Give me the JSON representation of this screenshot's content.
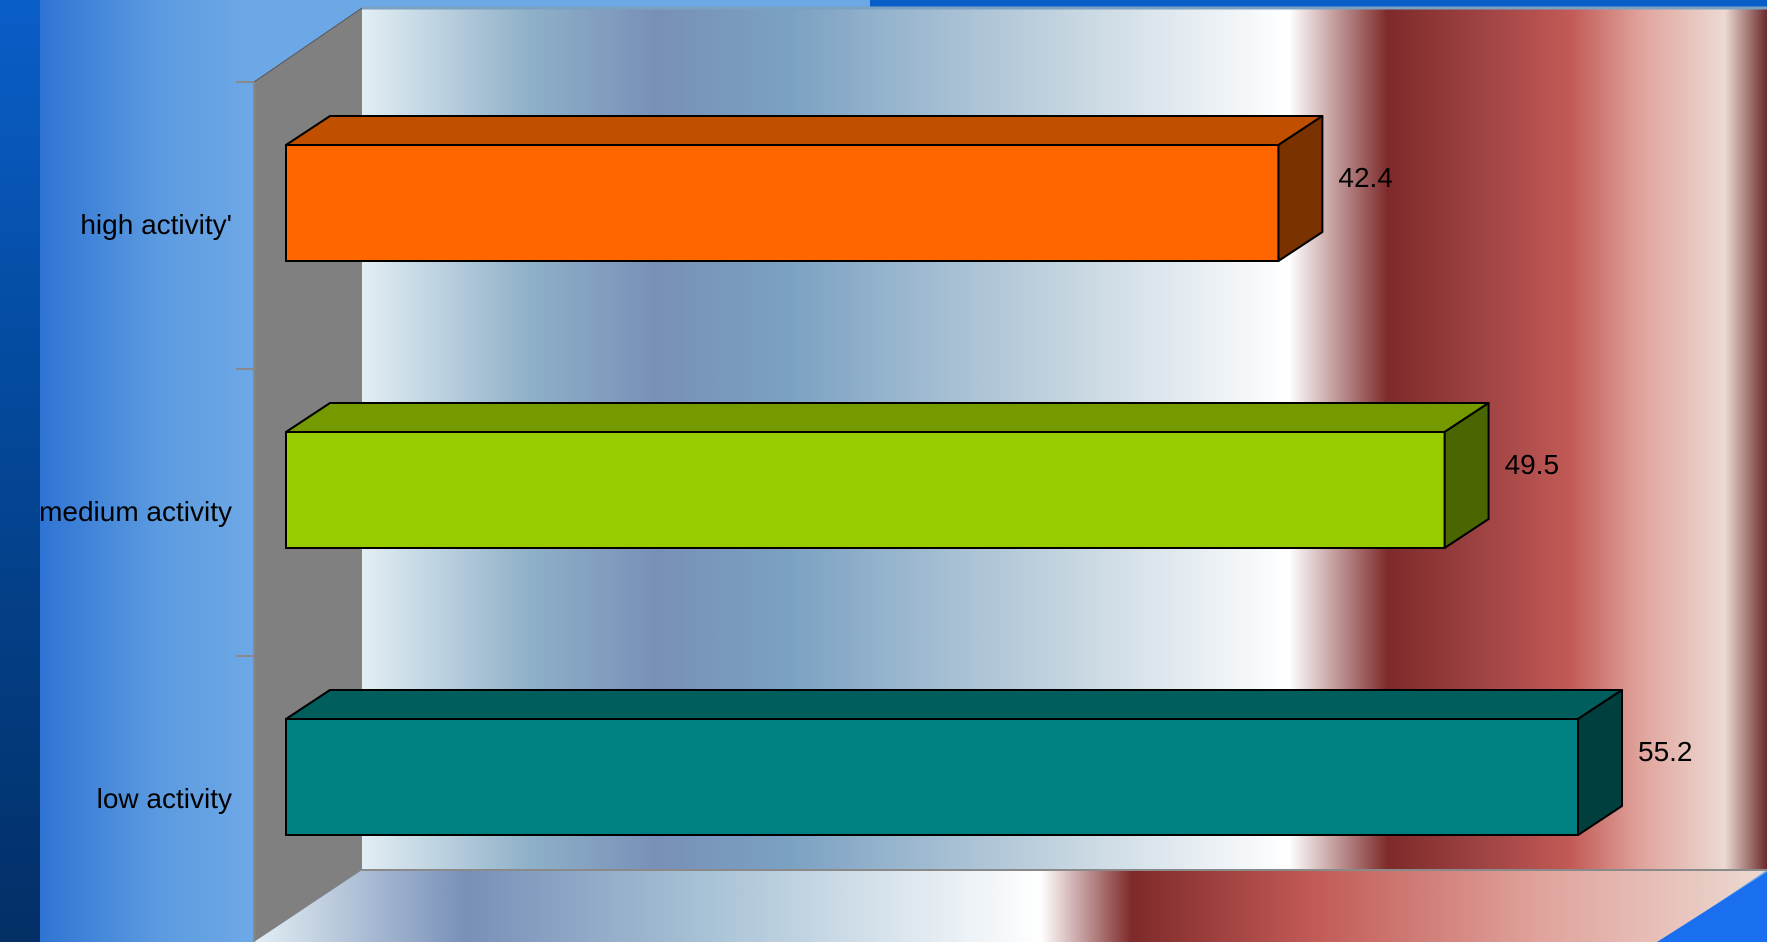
{
  "chart_data": {
    "type": "bar",
    "orientation": "horizontal",
    "style": "3d",
    "categories": [
      "high activity'",
      "medium activity",
      "low activity"
    ],
    "values": [
      42.4,
      49.5,
      55.2
    ],
    "value_labels": [
      "42.4",
      "49.5",
      "55.2"
    ],
    "xlim": [
      0,
      55.2
    ],
    "grid": false,
    "legend": "none",
    "title": "",
    "xlabel": "",
    "ylabel": "",
    "colors": [
      {
        "front": "#ff6600",
        "top": "#c05000",
        "side": "#7a3300"
      },
      {
        "front": "#99cc00",
        "top": "#749a00",
        "side": "#4a6600"
      },
      {
        "front": "#008080",
        "top": "#005f5c",
        "side": "#003f3d"
      }
    ]
  }
}
